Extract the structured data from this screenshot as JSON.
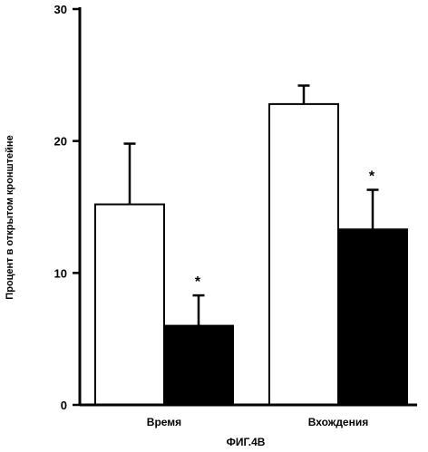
{
  "chart_data": {
    "type": "bar",
    "title": "",
    "xlabel": "",
    "ylabel": "Процент в открытом кронштейне",
    "ylim": [
      0,
      30
    ],
    "yticks": [
      "0",
      "10",
      "20",
      "30"
    ],
    "categories": [
      "Время",
      "Вхождения"
    ],
    "series": [
      {
        "fill": "#ffffff",
        "values": [
          15.2,
          22.8
        ],
        "errors": [
          4.6,
          1.4
        ],
        "significance": [
          "",
          ""
        ]
      },
      {
        "fill": "#000000",
        "values": [
          6.0,
          13.3
        ],
        "errors": [
          2.3,
          3.0
        ],
        "significance": [
          "*",
          "*"
        ]
      }
    ],
    "grid": false,
    "legend": "none",
    "caption": "ФИГ.4В"
  }
}
